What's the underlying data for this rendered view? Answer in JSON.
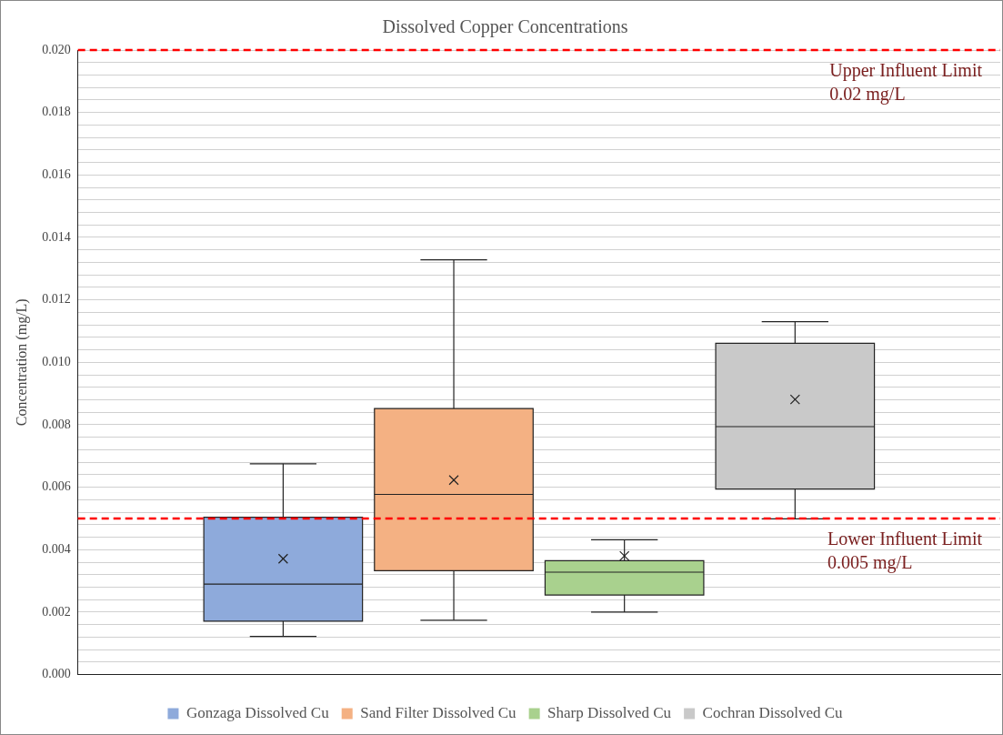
{
  "chart_data": {
    "type": "box",
    "title": "Dissolved Copper Concentrations",
    "ylabel": "Concentration (mg/L)",
    "categories": [
      null
    ],
    "series": [
      {
        "name": "Gonzaga Dissolved Cu",
        "color": "#8eaadb",
        "boxes": [
          {
            "low": 0.00122,
            "q1": 0.00171,
            "median": 0.0029,
            "q3": 0.00504,
            "high": 0.00675,
            "mean": 0.00371
          }
        ]
      },
      {
        "name": "Sand Filter Dissolved Cu",
        "color": "#f4b183",
        "boxes": [
          {
            "low": 0.00174,
            "q1": 0.00333,
            "median": 0.00577,
            "q3": 0.00852,
            "high": 0.01328,
            "mean": 0.00623
          }
        ]
      },
      {
        "name": "Sharp Dissolved Cu",
        "color": "#a9d18e",
        "boxes": [
          {
            "low": 0.002,
            "q1": 0.00255,
            "median": 0.00328,
            "q3": 0.00365,
            "high": 0.00432,
            "mean": 0.0038
          }
        ]
      },
      {
        "name": "Cochran Dissolved Cu",
        "color": "#c9c9c9",
        "boxes": [
          {
            "low": 0.00499,
            "q1": 0.00594,
            "median": 0.00794,
            "q3": 0.01061,
            "high": 0.0113,
            "mean": 0.00881
          }
        ]
      }
    ],
    "ylim": [
      0,
      0.02
    ],
    "yticks": [
      "0.000",
      {
        "value": 0.0004,
        "label": null
      },
      {
        "value": 0.0008,
        "label": null
      },
      {
        "value": 0.0012,
        "label": null
      },
      {
        "value": 0.0016,
        "label": null
      },
      {
        "value": 0.002,
        "label": "0.002"
      },
      {
        "value": 0.0024,
        "label": null
      },
      {
        "value": 0.0028,
        "label": null
      },
      {
        "value": 0.0032,
        "label": null
      },
      {
        "value": 0.0036,
        "label": null
      },
      {
        "value": 0.004,
        "label": "0.004"
      },
      {
        "value": 0.0044,
        "label": null
      },
      {
        "value": 0.0048,
        "label": null
      },
      {
        "value": 0.0052,
        "label": null
      },
      {
        "value": 0.0056,
        "label": null
      },
      {
        "value": 0.006,
        "label": "0.006"
      },
      {
        "value": 0.0064,
        "label": null
      },
      {
        "value": 0.0068,
        "label": null
      },
      {
        "value": 0.0072,
        "label": null
      },
      {
        "value": 0.0076,
        "label": null
      },
      {
        "value": 0.008,
        "label": "0.008"
      },
      {
        "value": 0.0084,
        "label": null
      },
      {
        "value": 0.0088,
        "label": null
      },
      {
        "value": 0.0092,
        "label": null
      },
      {
        "value": 0.0096,
        "label": null
      },
      {
        "value": 0.01,
        "label": "0.010"
      },
      {
        "value": 0.0104,
        "label": null
      },
      {
        "value": 0.0108,
        "label": null
      },
      {
        "value": 0.0112,
        "label": null
      },
      {
        "value": 0.0116,
        "label": null
      },
      {
        "value": 0.012,
        "label": "0.012"
      },
      {
        "value": 0.0124,
        "label": null
      },
      {
        "value": 0.0128,
        "label": null
      },
      {
        "value": 0.0132,
        "label": null
      },
      {
        "value": 0.0136,
        "label": null
      },
      {
        "value": 0.014,
        "label": "0.014"
      },
      {
        "value": 0.0144,
        "label": null
      },
      {
        "value": 0.0148,
        "label": null
      },
      {
        "value": 0.0152,
        "label": null
      },
      {
        "value": 0.0156,
        "label": null
      },
      {
        "value": 0.016,
        "label": "0.016"
      },
      {
        "value": 0.0164,
        "label": null
      },
      {
        "value": 0.0168,
        "label": null
      },
      {
        "value": 0.0172,
        "label": null
      },
      {
        "value": 0.0176,
        "label": null
      },
      {
        "value": 0.018,
        "label": "0.018"
      },
      {
        "value": 0.0184,
        "label": null
      },
      {
        "value": 0.0188,
        "label": null
      },
      {
        "value": 0.0192,
        "label": null
      },
      {
        "value": 0.0196,
        "label": null
      },
      {
        "value": 0.02,
        "label": "0.020"
      }
    ],
    "ref_lines": [
      {
        "axis": "y",
        "value": 0.02,
        "label": "Upper Influent Limit 0.02 mg/L",
        "color": "#ff0000",
        "line_style": "dashed"
      },
      {
        "axis": "y",
        "value": 0.005,
        "label": "Lower Influent Limit 0.005 mg/L",
        "color": "#ff0000",
        "line_style": "dashed"
      }
    ],
    "grid": "y",
    "legend": "bottom"
  }
}
